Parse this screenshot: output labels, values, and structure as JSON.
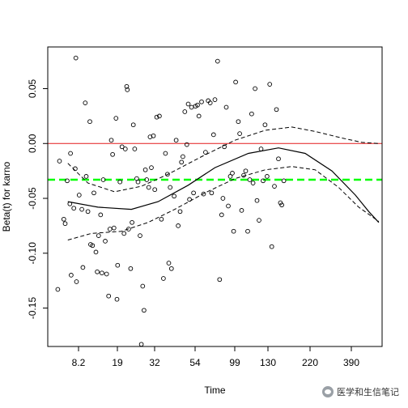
{
  "chart_data": {
    "type": "scatter",
    "xlabel": "Time",
    "ylabel": "Beta(t) for karno",
    "x_ticks": [
      "8.2",
      "19",
      "32",
      "54",
      "99",
      "130",
      "220",
      "390"
    ],
    "y_ticks": [
      "-0.15",
      "-0.10",
      "-0.05",
      "0.00",
      "0.05"
    ],
    "x_range": [
      0,
      1
    ],
    "ylim": [
      -0.185,
      0.088
    ],
    "reference_lines": [
      {
        "name": "zero",
        "y": 0.0,
        "color": "#e31a1c",
        "style": "solid"
      },
      {
        "name": "average",
        "y": -0.033,
        "color": "#00ff00",
        "style": "dashed"
      }
    ],
    "smooth_curve": [
      {
        "x": 0.06,
        "y": -0.053
      },
      {
        "x": 0.15,
        "y": -0.058
      },
      {
        "x": 0.25,
        "y": -0.06
      },
      {
        "x": 0.33,
        "y": -0.053
      },
      {
        "x": 0.42,
        "y": -0.038
      },
      {
        "x": 0.5,
        "y": -0.022
      },
      {
        "x": 0.6,
        "y": -0.009
      },
      {
        "x": 0.69,
        "y": -0.004
      },
      {
        "x": 0.77,
        "y": -0.009
      },
      {
        "x": 0.85,
        "y": -0.025
      },
      {
        "x": 0.92,
        "y": -0.047
      },
      {
        "x": 0.96,
        "y": -0.062
      },
      {
        "x": 0.99,
        "y": -0.072
      }
    ],
    "upper_band": [
      {
        "x": 0.06,
        "y": -0.018
      },
      {
        "x": 0.12,
        "y": -0.036
      },
      {
        "x": 0.2,
        "y": -0.044
      },
      {
        "x": 0.28,
        "y": -0.039
      },
      {
        "x": 0.36,
        "y": -0.028
      },
      {
        "x": 0.46,
        "y": -0.012
      },
      {
        "x": 0.56,
        "y": 0.003
      },
      {
        "x": 0.65,
        "y": 0.012
      },
      {
        "x": 0.73,
        "y": 0.015
      },
      {
        "x": 0.8,
        "y": 0.011
      },
      {
        "x": 0.88,
        "y": 0.005
      },
      {
        "x": 0.94,
        "y": 0.001
      },
      {
        "x": 0.99,
        "y": 0.0
      }
    ],
    "lower_band": [
      {
        "x": 0.06,
        "y": -0.088
      },
      {
        "x": 0.13,
        "y": -0.082
      },
      {
        "x": 0.22,
        "y": -0.08
      },
      {
        "x": 0.3,
        "y": -0.072
      },
      {
        "x": 0.38,
        "y": -0.06
      },
      {
        "x": 0.47,
        "y": -0.045
      },
      {
        "x": 0.56,
        "y": -0.032
      },
      {
        "x": 0.65,
        "y": -0.024
      },
      {
        "x": 0.73,
        "y": -0.021
      },
      {
        "x": 0.8,
        "y": -0.024
      },
      {
        "x": 0.87,
        "y": -0.04
      },
      {
        "x": 0.93,
        "y": -0.058
      },
      {
        "x": 0.99,
        "y": -0.071
      }
    ],
    "points": [
      {
        "x": 0.03,
        "y": -0.133
      },
      {
        "x": 0.035,
        "y": -0.016
      },
      {
        "x": 0.048,
        "y": -0.069
      },
      {
        "x": 0.052,
        "y": -0.073
      },
      {
        "x": 0.058,
        "y": -0.034
      },
      {
        "x": 0.066,
        "y": -0.055
      },
      {
        "x": 0.068,
        "y": -0.009
      },
      {
        "x": 0.07,
        "y": -0.12
      },
      {
        "x": 0.078,
        "y": -0.059
      },
      {
        "x": 0.082,
        "y": -0.023
      },
      {
        "x": 0.084,
        "y": 0.078
      },
      {
        "x": 0.086,
        "y": -0.126
      },
      {
        "x": 0.094,
        "y": -0.047
      },
      {
        "x": 0.102,
        "y": -0.06
      },
      {
        "x": 0.105,
        "y": -0.113
      },
      {
        "x": 0.112,
        "y": 0.037
      },
      {
        "x": 0.115,
        "y": -0.03
      },
      {
        "x": 0.12,
        "y": -0.062
      },
      {
        "x": 0.126,
        "y": 0.02
      },
      {
        "x": 0.128,
        "y": -0.092
      },
      {
        "x": 0.134,
        "y": -0.093
      },
      {
        "x": 0.138,
        "y": -0.045
      },
      {
        "x": 0.144,
        "y": -0.099
      },
      {
        "x": 0.148,
        "y": -0.117
      },
      {
        "x": 0.152,
        "y": -0.084
      },
      {
        "x": 0.158,
        "y": -0.065
      },
      {
        "x": 0.162,
        "y": -0.118
      },
      {
        "x": 0.166,
        "y": -0.033
      },
      {
        "x": 0.172,
        "y": -0.089
      },
      {
        "x": 0.176,
        "y": -0.119
      },
      {
        "x": 0.182,
        "y": -0.139
      },
      {
        "x": 0.186,
        "y": -0.078
      },
      {
        "x": 0.19,
        "y": 0.003
      },
      {
        "x": 0.194,
        "y": -0.01
      },
      {
        "x": 0.198,
        "y": -0.077
      },
      {
        "x": 0.204,
        "y": 0.023
      },
      {
        "x": 0.207,
        "y": -0.142
      },
      {
        "x": 0.209,
        "y": -0.111
      },
      {
        "x": 0.216,
        "y": -0.035
      },
      {
        "x": 0.222,
        "y": -0.003
      },
      {
        "x": 0.228,
        "y": -0.082
      },
      {
        "x": 0.232,
        "y": -0.005
      },
      {
        "x": 0.236,
        "y": 0.052
      },
      {
        "x": 0.238,
        "y": 0.049
      },
      {
        "x": 0.242,
        "y": -0.078
      },
      {
        "x": 0.248,
        "y": -0.114
      },
      {
        "x": 0.252,
        "y": -0.072
      },
      {
        "x": 0.256,
        "y": 0.017
      },
      {
        "x": 0.26,
        "y": -0.005
      },
      {
        "x": 0.266,
        "y": -0.032
      },
      {
        "x": 0.27,
        "y": -0.035
      },
      {
        "x": 0.276,
        "y": -0.084
      },
      {
        "x": 0.28,
        "y": -0.183
      },
      {
        "x": 0.284,
        "y": -0.13
      },
      {
        "x": 0.288,
        "y": -0.152
      },
      {
        "x": 0.292,
        "y": -0.024
      },
      {
        "x": 0.296,
        "y": -0.033
      },
      {
        "x": 0.302,
        "y": -0.04
      },
      {
        "x": 0.306,
        "y": 0.006
      },
      {
        "x": 0.31,
        "y": -0.022
      },
      {
        "x": 0.316,
        "y": 0.007
      },
      {
        "x": 0.32,
        "y": -0.042
      },
      {
        "x": 0.326,
        "y": 0.024
      },
      {
        "x": 0.334,
        "y": 0.025
      },
      {
        "x": 0.34,
        "y": -0.069
      },
      {
        "x": 0.346,
        "y": -0.123
      },
      {
        "x": 0.352,
        "y": -0.009
      },
      {
        "x": 0.358,
        "y": -0.028
      },
      {
        "x": 0.362,
        "y": -0.109
      },
      {
        "x": 0.366,
        "y": -0.04
      },
      {
        "x": 0.37,
        "y": -0.114
      },
      {
        "x": 0.378,
        "y": -0.048
      },
      {
        "x": 0.384,
        "y": 0.003
      },
      {
        "x": 0.39,
        "y": -0.075
      },
      {
        "x": 0.396,
        "y": -0.062
      },
      {
        "x": 0.4,
        "y": -0.017
      },
      {
        "x": 0.404,
        "y": -0.012
      },
      {
        "x": 0.41,
        "y": 0.029
      },
      {
        "x": 0.416,
        "y": -0.001
      },
      {
        "x": 0.42,
        "y": 0.036
      },
      {
        "x": 0.424,
        "y": -0.051
      },
      {
        "x": 0.43,
        "y": 0.033
      },
      {
        "x": 0.436,
        "y": -0.045
      },
      {
        "x": 0.442,
        "y": 0.034
      },
      {
        "x": 0.448,
        "y": 0.035
      },
      {
        "x": 0.452,
        "y": 0.025
      },
      {
        "x": 0.46,
        "y": 0.038
      },
      {
        "x": 0.466,
        "y": -0.046
      },
      {
        "x": 0.472,
        "y": -0.008
      },
      {
        "x": 0.48,
        "y": 0.039
      },
      {
        "x": 0.486,
        "y": 0.037
      },
      {
        "x": 0.49,
        "y": -0.045
      },
      {
        "x": 0.496,
        "y": 0.008
      },
      {
        "x": 0.5,
        "y": 0.04
      },
      {
        "x": 0.508,
        "y": 0.075
      },
      {
        "x": 0.514,
        "y": -0.124
      },
      {
        "x": 0.52,
        "y": -0.065
      },
      {
        "x": 0.524,
        "y": -0.05
      },
      {
        "x": 0.528,
        "y": -0.003
      },
      {
        "x": 0.534,
        "y": 0.033
      },
      {
        "x": 0.54,
        "y": -0.057
      },
      {
        "x": 0.546,
        "y": -0.03
      },
      {
        "x": 0.552,
        "y": -0.027
      },
      {
        "x": 0.556,
        "y": -0.08
      },
      {
        "x": 0.562,
        "y": 0.056
      },
      {
        "x": 0.57,
        "y": 0.02
      },
      {
        "x": 0.574,
        "y": 0.009
      },
      {
        "x": 0.58,
        "y": -0.061
      },
      {
        "x": 0.586,
        "y": -0.029
      },
      {
        "x": 0.592,
        "y": -0.025
      },
      {
        "x": 0.598,
        "y": -0.08
      },
      {
        "x": 0.604,
        "y": -0.033
      },
      {
        "x": 0.61,
        "y": 0.027
      },
      {
        "x": 0.614,
        "y": -0.036
      },
      {
        "x": 0.62,
        "y": 0.05
      },
      {
        "x": 0.626,
        "y": -0.052
      },
      {
        "x": 0.632,
        "y": -0.07
      },
      {
        "x": 0.638,
        "y": -0.005
      },
      {
        "x": 0.644,
        "y": -0.034
      },
      {
        "x": 0.65,
        "y": 0.017
      },
      {
        "x": 0.656,
        "y": -0.03
      },
      {
        "x": 0.664,
        "y": 0.054
      },
      {
        "x": 0.67,
        "y": -0.094
      },
      {
        "x": 0.678,
        "y": -0.039
      },
      {
        "x": 0.684,
        "y": 0.031
      },
      {
        "x": 0.69,
        "y": -0.014
      },
      {
        "x": 0.696,
        "y": -0.054
      },
      {
        "x": 0.7,
        "y": -0.056
      },
      {
        "x": 0.706,
        "y": -0.034
      }
    ]
  },
  "watermark": {
    "text": "医学和生信笔记",
    "icon": "wechat-icon"
  }
}
